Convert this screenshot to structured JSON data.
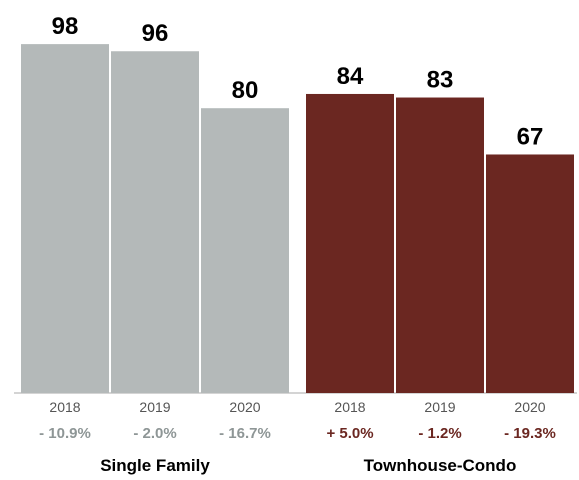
{
  "chart_data": {
    "type": "bar",
    "ylim": [
      0,
      100
    ],
    "grid": false,
    "legend": "none",
    "groups": [
      {
        "name": "Single Family",
        "color": "#b4b9b9",
        "change_color": "#8e9696",
        "bars": [
          {
            "year": "2018",
            "value": 98,
            "value_label": "98",
            "change": "- 10.9%"
          },
          {
            "year": "2019",
            "value": 96,
            "value_label": "96",
            "change": "- 2.0%"
          },
          {
            "year": "2020",
            "value": 80,
            "value_label": "80",
            "change": "- 16.7%"
          }
        ]
      },
      {
        "name": "Townhouse-Condo",
        "color": "#6b2721",
        "change_color": "#6b2721",
        "bars": [
          {
            "year": "2018",
            "value": 84,
            "value_label": "84",
            "change": "+ 5.0%"
          },
          {
            "year": "2019",
            "value": 83,
            "value_label": "83",
            "change": "- 1.2%"
          },
          {
            "year": "2020",
            "value": 67,
            "value_label": "67",
            "change": "- 19.3%"
          }
        ]
      }
    ]
  }
}
